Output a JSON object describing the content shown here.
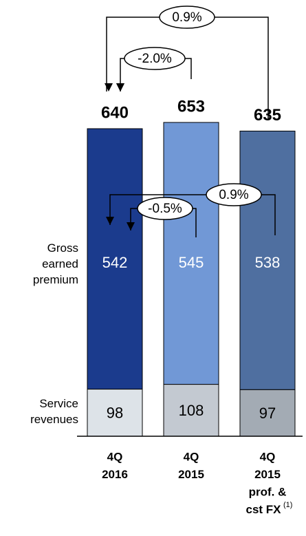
{
  "chart_data": {
    "type": "stacked_bar",
    "categories": [
      [
        "4Q",
        "2016"
      ],
      [
        "4Q",
        "2015"
      ],
      [
        "4Q",
        "2015",
        "prof. &",
        "cst FX"
      ]
    ],
    "footnote_mark": "(1)",
    "series": [
      {
        "name": "Service revenues",
        "colors": [
          "#dde3e8",
          "#c3c9d1",
          "#a3abb4"
        ],
        "values": [
          98,
          108,
          97
        ]
      },
      {
        "name": "Gross earned premium",
        "colors": [
          "#1b3b8d",
          "#7198d6",
          "#4f6fa0"
        ],
        "values": [
          542,
          545,
          538
        ]
      }
    ],
    "totals": [
      640,
      653,
      635
    ],
    "ylim": [
      0,
      700
    ],
    "annotations": [
      {
        "text": "0.9%"
      },
      {
        "text": "-2.0%"
      },
      {
        "text": "0.9%"
      },
      {
        "text": "-0.5%"
      }
    ]
  }
}
